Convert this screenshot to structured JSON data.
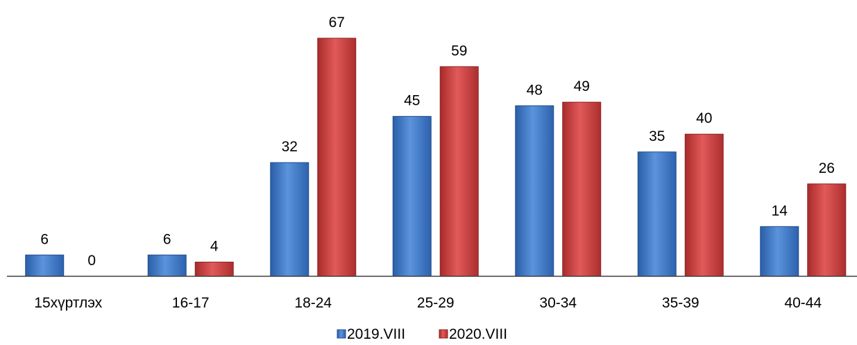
{
  "chart_data": {
    "type": "bar",
    "title": "",
    "xlabel": "",
    "ylabel": "",
    "categories": [
      "15хүртлэх",
      "16-17",
      "18-24",
      "25-29",
      "30-34",
      "35-39",
      "40-44"
    ],
    "series": [
      {
        "name": "2019.VIII",
        "values": [
          6,
          6,
          32,
          45,
          48,
          35,
          14
        ],
        "color": "#3c78c8"
      },
      {
        "name": "2020.VIII",
        "values": [
          0,
          4,
          67,
          59,
          49,
          40,
          26
        ],
        "color": "#c83c3c"
      }
    ],
    "ylim": [
      0,
      67
    ],
    "grid": false,
    "legend_position": "bottom"
  }
}
